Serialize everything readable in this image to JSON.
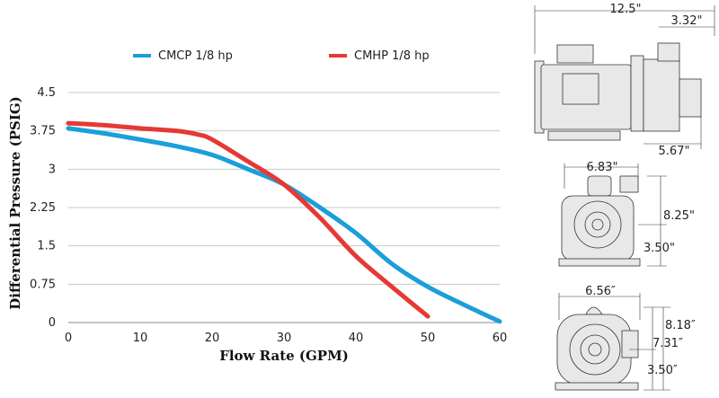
{
  "chart_data": {
    "type": "line",
    "xlabel": "Flow Rate  (GPM)",
    "ylabel": "Differential Pressure (PSIG)",
    "xlim": [
      0,
      60
    ],
    "ylim": [
      0,
      4.5
    ],
    "xticks": [
      "0",
      "10",
      "20",
      "30",
      "40",
      "50",
      "60"
    ],
    "yticks": [
      "0",
      "0.75",
      "1.5",
      "2.25",
      "3",
      "3.75",
      "4.5"
    ],
    "grid": "horizontal",
    "legend": "top",
    "series": [
      {
        "name": "CMCP 1/8 hp",
        "color": "#1a9fd9",
        "x": [
          0,
          5,
          10,
          15,
          20,
          25,
          30,
          35,
          40,
          45,
          50,
          55,
          60
        ],
        "y": [
          3.8,
          3.7,
          3.58,
          3.45,
          3.28,
          3.0,
          2.7,
          2.25,
          1.75,
          1.15,
          0.7,
          0.35,
          0.02
        ]
      },
      {
        "name": "CMHP 1/8 hp",
        "color": "#e53935",
        "x": [
          0,
          5,
          10,
          15,
          18,
          20,
          25,
          30,
          35,
          40,
          45,
          50
        ],
        "y": [
          3.9,
          3.86,
          3.8,
          3.75,
          3.68,
          3.58,
          3.15,
          2.7,
          2.05,
          1.3,
          0.7,
          0.12
        ]
      }
    ]
  },
  "dimensions": {
    "side": {
      "overall": "12.5\"",
      "port": "3.32\"",
      "height": "5.67\""
    },
    "front": {
      "width": "6.83\"",
      "height": "8.25\"",
      "base": "3.50\""
    },
    "alt_front": {
      "width": "6.56″",
      "height": "8.18″",
      "mid": "7.31″",
      "base": "3.50″"
    }
  }
}
